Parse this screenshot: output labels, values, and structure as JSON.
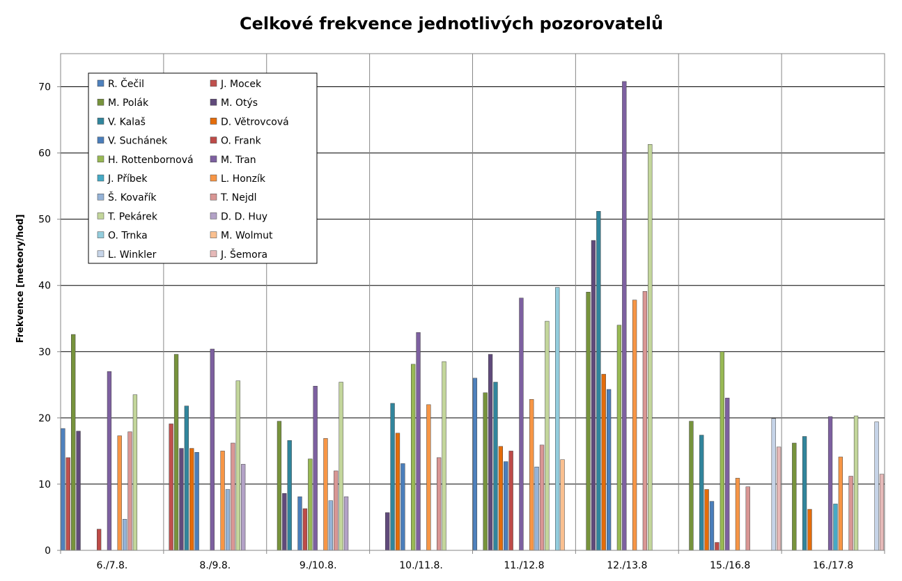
{
  "chart_data": {
    "type": "bar",
    "title": "Celkové frekvence jednotlivých pozorovatelů",
    "xlabel": "",
    "ylabel": "Frekvence [meteory/hod]",
    "ylim": [
      0,
      75
    ],
    "yticks": [
      0,
      10,
      20,
      30,
      40,
      50,
      60,
      70
    ],
    "grid": true,
    "legend_position": "top-left",
    "categories": [
      "6./7.8.",
      "8./9.8.",
      "9./10.8.",
      "10./11.8.",
      "11./12.8",
      "12./13.8",
      "15./16.8",
      "16./17.8"
    ],
    "series": [
      {
        "name": "R. Čečil",
        "color": "#4F81BD",
        "values": [
          18.4,
          null,
          null,
          null,
          26.0,
          null,
          null,
          null
        ]
      },
      {
        "name": "J. Mocek",
        "color": "#C0504D",
        "values": [
          14.0,
          19.1,
          null,
          null,
          null,
          null,
          null,
          null
        ]
      },
      {
        "name": "M. Polák",
        "color": "#77933C",
        "values": [
          32.6,
          29.6,
          19.5,
          null,
          23.8,
          39.0,
          19.5,
          16.2
        ]
      },
      {
        "name": "M. Otýs",
        "color": "#604A7B",
        "values": [
          18.0,
          15.4,
          8.6,
          5.7,
          29.6,
          46.8,
          null,
          null
        ]
      },
      {
        "name": "V. Kalaš",
        "color": "#31859C",
        "values": [
          null,
          21.8,
          16.6,
          22.2,
          25.4,
          51.2,
          17.4,
          17.2
        ]
      },
      {
        "name": "D. Větrovcová",
        "color": "#E46C0A",
        "values": [
          null,
          15.4,
          null,
          17.7,
          15.7,
          26.6,
          9.2,
          6.2
        ]
      },
      {
        "name": "V. Suchánek",
        "color": "#4A7EBB",
        "values": [
          null,
          14.8,
          8.1,
          13.1,
          13.4,
          24.3,
          7.4,
          null
        ]
      },
      {
        "name": "O. Frank",
        "color": "#BE4B48",
        "values": [
          3.2,
          null,
          6.3,
          null,
          15.0,
          null,
          1.2,
          null
        ]
      },
      {
        "name": "H. Rottenbornová",
        "color": "#98B954",
        "values": [
          null,
          null,
          13.8,
          28.1,
          null,
          34.0,
          30.0,
          null
        ]
      },
      {
        "name": "M. Tran",
        "color": "#7D60A0",
        "values": [
          27.0,
          30.4,
          24.8,
          32.9,
          38.1,
          70.8,
          23.0,
          20.2
        ]
      },
      {
        "name": "J. Příbek",
        "color": "#46AAC5",
        "values": [
          null,
          null,
          null,
          null,
          null,
          null,
          null,
          7.0
        ]
      },
      {
        "name": "L. Honzík",
        "color": "#F79646",
        "values": [
          17.3,
          15.0,
          16.9,
          22.0,
          22.8,
          37.8,
          10.9,
          14.1
        ]
      },
      {
        "name": "Š. Kovařík",
        "color": "#95B3D7",
        "values": [
          4.7,
          9.2,
          7.5,
          null,
          12.6,
          null,
          null,
          null
        ]
      },
      {
        "name": "T. Nejdl",
        "color": "#D99694",
        "values": [
          17.9,
          16.2,
          12.0,
          14.0,
          15.9,
          39.1,
          9.6,
          11.2
        ]
      },
      {
        "name": "T. Pekárek",
        "color": "#C3D69B",
        "values": [
          23.5,
          25.6,
          25.4,
          28.5,
          34.6,
          61.3,
          null,
          20.3
        ]
      },
      {
        "name": "D. D. Huy",
        "color": "#B3A2C7",
        "values": [
          null,
          13.0,
          8.1,
          null,
          null,
          null,
          null,
          null
        ]
      },
      {
        "name": "O. Trnka",
        "color": "#93CDDD",
        "values": [
          null,
          null,
          null,
          null,
          39.7,
          null,
          null,
          null
        ]
      },
      {
        "name": "M. Wolmut",
        "color": "#FAC090",
        "values": [
          null,
          null,
          null,
          null,
          13.7,
          null,
          null,
          null
        ]
      },
      {
        "name": "L. Winkler",
        "color": "#C6D4E8",
        "values": [
          null,
          null,
          null,
          null,
          null,
          null,
          19.9,
          19.4
        ]
      },
      {
        "name": "J. Šemora",
        "color": "#E6B9B8",
        "values": [
          null,
          null,
          null,
          null,
          null,
          null,
          15.6,
          11.5
        ]
      }
    ]
  }
}
